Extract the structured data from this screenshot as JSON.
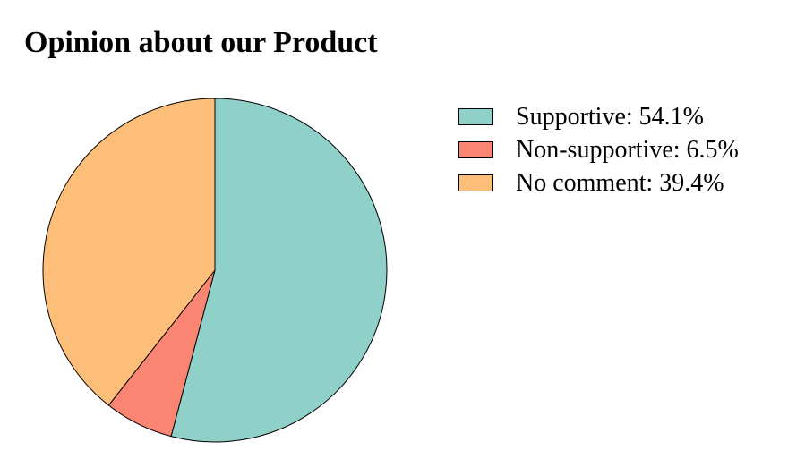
{
  "chart_data": {
    "type": "pie",
    "title": "Opinion about our Product",
    "slices": [
      {
        "label": "Supportive",
        "value": 54.1,
        "color": "#8fd0c9",
        "legend_text": "Supportive: 54.1%"
      },
      {
        "label": "Non-supportive",
        "value": 6.5,
        "color": "#f98572",
        "legend_text": "Non-supportive: 6.5%"
      },
      {
        "label": "No comment",
        "value": 39.4,
        "color": "#fdbe7a",
        "legend_text": "No comment: 39.4%"
      }
    ],
    "start_angle": "top",
    "direction": "clockwise",
    "legend_position": "right"
  }
}
